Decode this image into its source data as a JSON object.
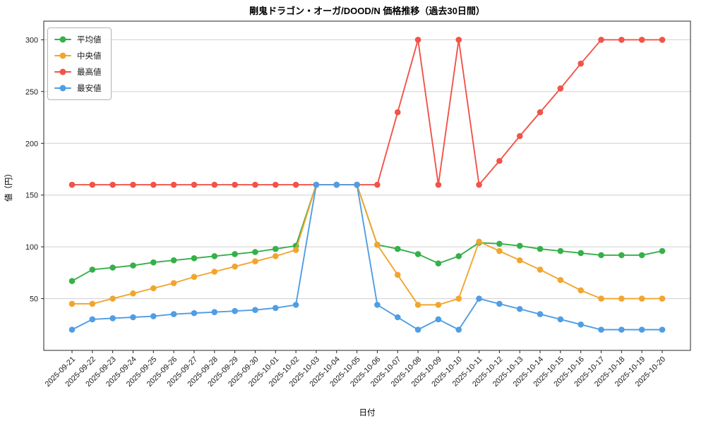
{
  "chart_data": {
    "type": "line",
    "title": "剛鬼ドラゴン・オーガ/DOOD/N 価格推移（過去30日間）",
    "xlabel": "日付",
    "ylabel": "値（円）",
    "ylim": [
      0,
      318
    ],
    "yticks": [
      50,
      100,
      150,
      200,
      250,
      300
    ],
    "grid": true,
    "legend_position": "upper left",
    "categories": [
      "2025-09-21",
      "2025-09-22",
      "2025-09-23",
      "2025-09-24",
      "2025-09-25",
      "2025-09-26",
      "2025-09-27",
      "2025-09-28",
      "2025-09-29",
      "2025-09-30",
      "2025-10-01",
      "2025-10-02",
      "2025-10-03",
      "2025-10-04",
      "2025-10-05",
      "2025-10-06",
      "2025-10-07",
      "2025-10-08",
      "2025-10-09",
      "2025-10-10",
      "2025-10-11",
      "2025-10-12",
      "2025-10-13",
      "2025-10-14",
      "2025-10-15",
      "2025-10-16",
      "2025-10-17",
      "2025-10-18",
      "2025-10-19",
      "2025-10-20"
    ],
    "series": [
      {
        "id": "average",
        "name": "平均値",
        "color": "#35b04a",
        "values": [
          67,
          78,
          80,
          82,
          85,
          87,
          89,
          91,
          93,
          95,
          98,
          101,
          160,
          160,
          160,
          102,
          98,
          93,
          84,
          91,
          104,
          103,
          101,
          98,
          96,
          94,
          92,
          92,
          92,
          96
        ]
      },
      {
        "id": "median",
        "name": "中央値",
        "color": "#f2a52e",
        "values": [
          45,
          45,
          50,
          55,
          60,
          65,
          71,
          76,
          81,
          86,
          91,
          97,
          160,
          160,
          160,
          102,
          73,
          44,
          44,
          50,
          105,
          96,
          87,
          78,
          68,
          58,
          50,
          50,
          50,
          50
        ]
      },
      {
        "id": "max",
        "name": "最高値",
        "color": "#f25349",
        "values": [
          160,
          160,
          160,
          160,
          160,
          160,
          160,
          160,
          160,
          160,
          160,
          160,
          160,
          160,
          160,
          160,
          230,
          300,
          160,
          300,
          160,
          183,
          207,
          230,
          253,
          277,
          300,
          300,
          300,
          300
        ]
      },
      {
        "id": "min",
        "name": "最安値",
        "color": "#509de4",
        "values": [
          20,
          30,
          31,
          32,
          33,
          35,
          36,
          37,
          38,
          39,
          41,
          44,
          160,
          160,
          160,
          44,
          32,
          20,
          30,
          20,
          50,
          45,
          40,
          35,
          30,
          25,
          20,
          20,
          20,
          20
        ]
      }
    ]
  }
}
